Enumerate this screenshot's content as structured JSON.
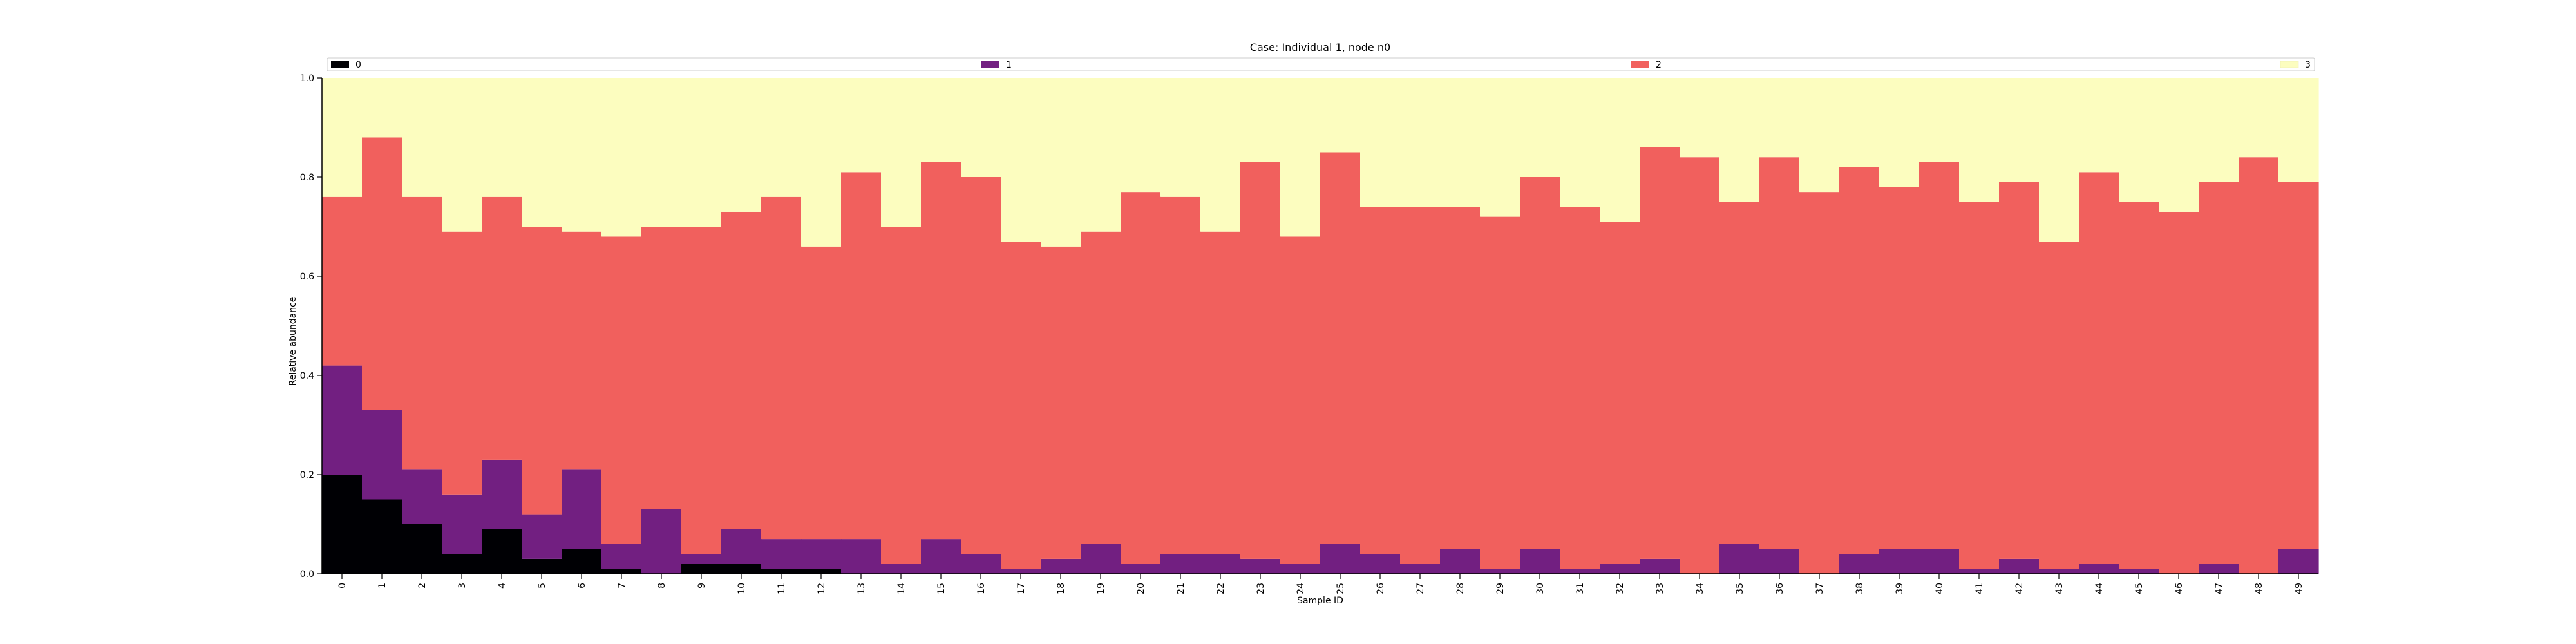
{
  "chart_data": {
    "type": "bar",
    "stacked": true,
    "title": "Case: Individual 1, node n0",
    "xlabel": "Sample ID",
    "ylabel": "Relative abundance",
    "ylim": [
      0,
      1.0
    ],
    "yticks": [
      "0.0",
      "0.2",
      "0.4",
      "0.6",
      "0.8",
      "1.0"
    ],
    "grid": false,
    "legend_position": "top",
    "categories": [
      "0",
      "1",
      "2",
      "3",
      "4",
      "5",
      "6",
      "7",
      "8",
      "9",
      "10",
      "11",
      "12",
      "13",
      "14",
      "15",
      "16",
      "17",
      "18",
      "19",
      "20",
      "21",
      "22",
      "23",
      "24",
      "25",
      "26",
      "27",
      "28",
      "29",
      "30",
      "31",
      "32",
      "33",
      "34",
      "35",
      "36",
      "37",
      "38",
      "39",
      "40",
      "41",
      "42",
      "43",
      "44",
      "45",
      "46",
      "47",
      "48",
      "49"
    ],
    "series": [
      {
        "name": "0",
        "color": "#000004",
        "values": [
          0.2,
          0.15,
          0.1,
          0.04,
          0.09,
          0.03,
          0.05,
          0.01,
          0.0,
          0.02,
          0.02,
          0.01,
          0.01,
          0.0,
          0.0,
          0.0,
          0.0,
          0.0,
          0.0,
          0.0,
          0.0,
          0.0,
          0.0,
          0.0,
          0.0,
          0.0,
          0.0,
          0.0,
          0.0,
          0.0,
          0.0,
          0.0,
          0.0,
          0.0,
          0.0,
          0.0,
          0.0,
          0.0,
          0.0,
          0.0,
          0.0,
          0.0,
          0.0,
          0.0,
          0.0,
          0.0,
          0.0,
          0.0,
          0.0,
          0.0
        ]
      },
      {
        "name": "1",
        "color": "#721f81",
        "values": [
          0.22,
          0.18,
          0.11,
          0.12,
          0.14,
          0.09,
          0.16,
          0.05,
          0.13,
          0.02,
          0.07,
          0.06,
          0.06,
          0.07,
          0.02,
          0.07,
          0.04,
          0.01,
          0.03,
          0.06,
          0.02,
          0.04,
          0.04,
          0.03,
          0.02,
          0.06,
          0.04,
          0.02,
          0.05,
          0.01,
          0.05,
          0.01,
          0.02,
          0.03,
          0.0,
          0.06,
          0.05,
          0.0,
          0.04,
          0.05,
          0.05,
          0.01,
          0.03,
          0.01,
          0.02,
          0.01,
          0.0,
          0.02,
          0.0,
          0.05
        ]
      },
      {
        "name": "2",
        "color": "#f1605d",
        "values": [
          0.34,
          0.55,
          0.55,
          0.53,
          0.53,
          0.58,
          0.48,
          0.62,
          0.57,
          0.66,
          0.64,
          0.69,
          0.59,
          0.74,
          0.68,
          0.76,
          0.76,
          0.66,
          0.63,
          0.63,
          0.75,
          0.72,
          0.65,
          0.8,
          0.66,
          0.79,
          0.7,
          0.72,
          0.69,
          0.71,
          0.75,
          0.73,
          0.69,
          0.83,
          0.84,
          0.69,
          0.79,
          0.77,
          0.78,
          0.73,
          0.78,
          0.74,
          0.76,
          0.66,
          0.79,
          0.74,
          0.73,
          0.77,
          0.84,
          0.74
        ]
      },
      {
        "name": "3",
        "color": "#fcfdbf",
        "values": [
          0.24,
          0.12,
          0.24,
          0.31,
          0.24,
          0.3,
          0.31,
          0.32,
          0.3,
          0.3,
          0.27,
          0.24,
          0.34,
          0.19,
          0.3,
          0.17,
          0.2,
          0.33,
          0.34,
          0.31,
          0.23,
          0.24,
          0.31,
          0.17,
          0.32,
          0.15,
          0.26,
          0.26,
          0.26,
          0.28,
          0.2,
          0.26,
          0.29,
          0.14,
          0.16,
          0.25,
          0.16,
          0.23,
          0.18,
          0.22,
          0.17,
          0.25,
          0.21,
          0.33,
          0.19,
          0.25,
          0.27,
          0.21,
          0.16,
          0.21
        ]
      }
    ]
  }
}
